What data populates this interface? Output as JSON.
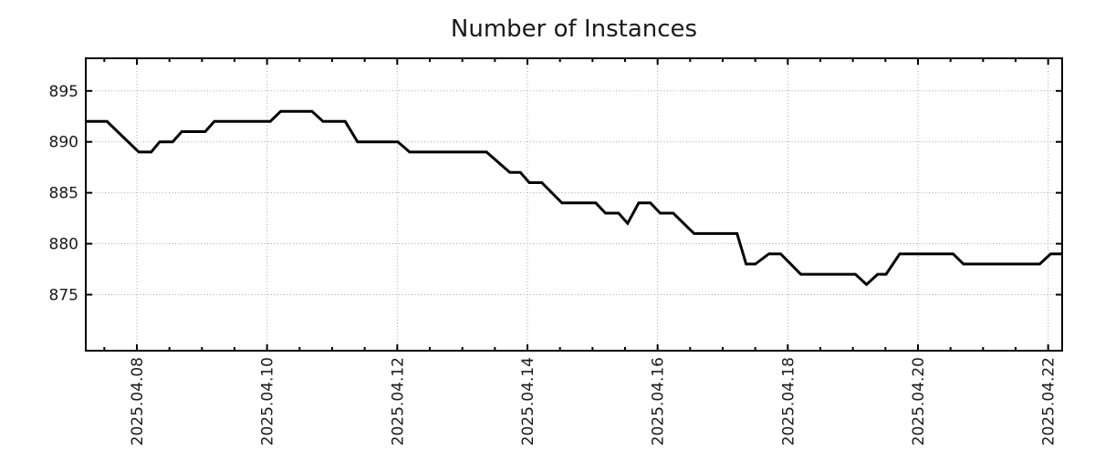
{
  "colors": {
    "line": "#000000",
    "grid": "#a6a6a6",
    "axis": "#000000",
    "text": "#1a1a1a",
    "background": "#ffffff"
  },
  "chart_data": {
    "type": "line",
    "title": "Number of Instances",
    "xlabel": "",
    "ylabel": "",
    "legend": "none",
    "grid": "dotted",
    "x_unit": "date, day-of-month April 2025 (fractional = time of day)",
    "x_tick_labels": [
      "2025.04.08",
      "2025.04.10",
      "2025.04.12",
      "2025.04.14",
      "2025.04.16",
      "2025.04.18",
      "2025.04.20",
      "2025.04.22"
    ],
    "x_tick_days": [
      8,
      10,
      12,
      14,
      16,
      18,
      20,
      22
    ],
    "x_minor_tick_step_days": 0.5,
    "xlim_days": [
      7.215,
      22.215
    ],
    "y_tick_labels": [
      "895",
      "890",
      "885",
      "880",
      "875"
    ],
    "y_tick_values": [
      895,
      890,
      885,
      880,
      875
    ],
    "ylim": [
      869.5,
      898.2
    ],
    "series": [
      {
        "name": "instances",
        "points": [
          [
            7.22,
            892
          ],
          [
            7.54,
            892
          ],
          [
            8.03,
            889
          ],
          [
            8.22,
            889
          ],
          [
            8.35,
            890
          ],
          [
            8.55,
            890
          ],
          [
            8.69,
            891
          ],
          [
            9.05,
            891
          ],
          [
            9.19,
            892
          ],
          [
            10.05,
            892
          ],
          [
            10.21,
            893
          ],
          [
            10.69,
            893
          ],
          [
            10.86,
            892
          ],
          [
            11.2,
            892
          ],
          [
            11.39,
            890
          ],
          [
            12.01,
            890
          ],
          [
            12.19,
            889
          ],
          [
            13.37,
            889
          ],
          [
            13.73,
            887
          ],
          [
            13.89,
            887
          ],
          [
            14.03,
            886
          ],
          [
            14.22,
            886
          ],
          [
            14.53,
            884
          ],
          [
            15.05,
            884
          ],
          [
            15.2,
            883
          ],
          [
            15.4,
            883
          ],
          [
            15.54,
            882
          ],
          [
            15.71,
            884
          ],
          [
            15.89,
            884
          ],
          [
            16.04,
            883
          ],
          [
            16.24,
            883
          ],
          [
            16.56,
            881
          ],
          [
            17.22,
            881
          ],
          [
            17.36,
            878
          ],
          [
            17.5,
            878
          ],
          [
            17.71,
            879
          ],
          [
            17.89,
            879
          ],
          [
            18.2,
            877
          ],
          [
            19.04,
            877
          ],
          [
            19.21,
            876
          ],
          [
            19.38,
            877
          ],
          [
            19.51,
            877
          ],
          [
            19.72,
            879
          ],
          [
            20.54,
            879
          ],
          [
            20.7,
            878
          ],
          [
            21.87,
            878
          ],
          [
            22.04,
            879
          ],
          [
            22.21,
            879
          ]
        ]
      }
    ]
  }
}
